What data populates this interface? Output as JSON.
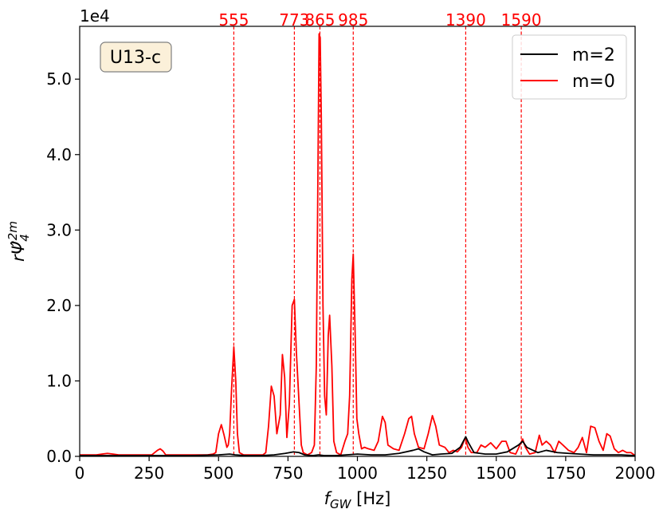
{
  "chart_data": {
    "type": "line",
    "model_label": "U13-c",
    "xlabel": "f_GW [Hz]",
    "ylabel": "rΨ̂_4^{2m}",
    "y_multiplier": "1e4",
    "xlim": [
      0,
      2000
    ],
    "ylim": [
      0,
      5.7
    ],
    "xticks": [
      0,
      250,
      500,
      750,
      1000,
      1250,
      1500,
      1750,
      2000
    ],
    "yticks": [
      0.0,
      1.0,
      2.0,
      3.0,
      4.0,
      5.0
    ],
    "ytick_labels": [
      "0.0",
      "1.0",
      "2.0",
      "3.0",
      "4.0",
      "5.0"
    ],
    "legend_position": "top-right",
    "grid": false,
    "peaks": [
      {
        "label": "555",
        "x": 555
      },
      {
        "label": "773",
        "x": 773
      },
      {
        "label": "865",
        "x": 865
      },
      {
        "label": "985",
        "x": 985
      },
      {
        "label": "1390",
        "x": 1390
      },
      {
        "label": "1590",
        "x": 1590
      }
    ],
    "series": [
      {
        "name": "m=2",
        "color": "#000000",
        "points": [
          [
            0,
            0.01
          ],
          [
            100,
            0.01
          ],
          [
            200,
            0.01
          ],
          [
            300,
            0.01
          ],
          [
            400,
            0.01
          ],
          [
            500,
            0.02
          ],
          [
            540,
            0.03
          ],
          [
            560,
            0.02
          ],
          [
            600,
            0.01
          ],
          [
            650,
            0.01
          ],
          [
            700,
            0.02
          ],
          [
            740,
            0.04
          ],
          [
            770,
            0.06
          ],
          [
            790,
            0.05
          ],
          [
            810,
            0.02
          ],
          [
            840,
            0.01
          ],
          [
            860,
            0.02
          ],
          [
            880,
            0.01
          ],
          [
            920,
            0.01
          ],
          [
            960,
            0.02
          ],
          [
            1000,
            0.03
          ],
          [
            1050,
            0.02
          ],
          [
            1100,
            0.02
          ],
          [
            1150,
            0.04
          ],
          [
            1200,
            0.08
          ],
          [
            1220,
            0.1
          ],
          [
            1240,
            0.06
          ],
          [
            1270,
            0.02
          ],
          [
            1300,
            0.03
          ],
          [
            1340,
            0.04
          ],
          [
            1370,
            0.12
          ],
          [
            1390,
            0.26
          ],
          [
            1400,
            0.18
          ],
          [
            1420,
            0.05
          ],
          [
            1460,
            0.03
          ],
          [
            1500,
            0.03
          ],
          [
            1540,
            0.06
          ],
          [
            1580,
            0.15
          ],
          [
            1595,
            0.2
          ],
          [
            1610,
            0.12
          ],
          [
            1650,
            0.05
          ],
          [
            1680,
            0.08
          ],
          [
            1720,
            0.05
          ],
          [
            1760,
            0.04
          ],
          [
            1800,
            0.03
          ],
          [
            1850,
            0.02
          ],
          [
            1900,
            0.02
          ],
          [
            1950,
            0.02
          ],
          [
            2000,
            0.01
          ]
        ]
      },
      {
        "name": "m=0",
        "color": "#ff0000",
        "points": [
          [
            0,
            0.02
          ],
          [
            40,
            0.02
          ],
          [
            60,
            0.02
          ],
          [
            80,
            0.03
          ],
          [
            100,
            0.04
          ],
          [
            120,
            0.03
          ],
          [
            140,
            0.02
          ],
          [
            180,
            0.02
          ],
          [
            220,
            0.02
          ],
          [
            260,
            0.02
          ],
          [
            280,
            0.08
          ],
          [
            290,
            0.1
          ],
          [
            300,
            0.07
          ],
          [
            310,
            0.02
          ],
          [
            340,
            0.02
          ],
          [
            380,
            0.02
          ],
          [
            420,
            0.02
          ],
          [
            460,
            0.02
          ],
          [
            480,
            0.03
          ],
          [
            490,
            0.05
          ],
          [
            500,
            0.3
          ],
          [
            510,
            0.42
          ],
          [
            520,
            0.28
          ],
          [
            530,
            0.12
          ],
          [
            535,
            0.15
          ],
          [
            540,
            0.3
          ],
          [
            547,
            0.9
          ],
          [
            555,
            1.45
          ],
          [
            562,
            1.0
          ],
          [
            568,
            0.3
          ],
          [
            575,
            0.05
          ],
          [
            590,
            0.02
          ],
          [
            620,
            0.02
          ],
          [
            660,
            0.02
          ],
          [
            670,
            0.05
          ],
          [
            680,
            0.4
          ],
          [
            690,
            0.93
          ],
          [
            700,
            0.8
          ],
          [
            710,
            0.3
          ],
          [
            722,
            0.55
          ],
          [
            730,
            1.35
          ],
          [
            738,
            1.05
          ],
          [
            746,
            0.25
          ],
          [
            755,
            0.7
          ],
          [
            765,
            2.0
          ],
          [
            773,
            2.08
          ],
          [
            780,
            1.4
          ],
          [
            790,
            0.7
          ],
          [
            798,
            0.15
          ],
          [
            805,
            0.05
          ],
          [
            820,
            0.02
          ],
          [
            835,
            0.05
          ],
          [
            845,
            0.15
          ],
          [
            852,
            1.2
          ],
          [
            858,
            3.8
          ],
          [
            862,
            5.6
          ],
          [
            866,
            5.55
          ],
          [
            870,
            4.5
          ],
          [
            876,
            2.0
          ],
          [
            882,
            0.8
          ],
          [
            888,
            0.55
          ],
          [
            895,
            1.6
          ],
          [
            900,
            1.87
          ],
          [
            908,
            1.2
          ],
          [
            915,
            0.2
          ],
          [
            925,
            0.05
          ],
          [
            940,
            0.02
          ],
          [
            955,
            0.2
          ],
          [
            965,
            0.3
          ],
          [
            972,
            0.8
          ],
          [
            980,
            2.35
          ],
          [
            985,
            2.68
          ],
          [
            992,
            1.6
          ],
          [
            998,
            0.5
          ],
          [
            1005,
            0.3
          ],
          [
            1015,
            0.1
          ],
          [
            1025,
            0.12
          ],
          [
            1040,
            0.1
          ],
          [
            1060,
            0.08
          ],
          [
            1075,
            0.2
          ],
          [
            1090,
            0.53
          ],
          [
            1100,
            0.45
          ],
          [
            1110,
            0.15
          ],
          [
            1130,
            0.1
          ],
          [
            1150,
            0.08
          ],
          [
            1170,
            0.3
          ],
          [
            1185,
            0.5
          ],
          [
            1195,
            0.53
          ],
          [
            1205,
            0.3
          ],
          [
            1220,
            0.12
          ],
          [
            1240,
            0.1
          ],
          [
            1255,
            0.3
          ],
          [
            1270,
            0.54
          ],
          [
            1282,
            0.4
          ],
          [
            1295,
            0.15
          ],
          [
            1315,
            0.12
          ],
          [
            1330,
            0.05
          ],
          [
            1345,
            0.08
          ],
          [
            1360,
            0.06
          ],
          [
            1375,
            0.12
          ],
          [
            1385,
            0.22
          ],
          [
            1390,
            0.22
          ],
          [
            1398,
            0.12
          ],
          [
            1410,
            0.05
          ],
          [
            1430,
            0.05
          ],
          [
            1445,
            0.15
          ],
          [
            1460,
            0.12
          ],
          [
            1480,
            0.18
          ],
          [
            1500,
            0.1
          ],
          [
            1520,
            0.2
          ],
          [
            1535,
            0.2
          ],
          [
            1550,
            0.05
          ],
          [
            1570,
            0.03
          ],
          [
            1585,
            0.15
          ],
          [
            1595,
            0.23
          ],
          [
            1605,
            0.12
          ],
          [
            1620,
            0.03
          ],
          [
            1640,
            0.05
          ],
          [
            1655,
            0.28
          ],
          [
            1665,
            0.15
          ],
          [
            1680,
            0.2
          ],
          [
            1695,
            0.15
          ],
          [
            1710,
            0.05
          ],
          [
            1725,
            0.2
          ],
          [
            1740,
            0.15
          ],
          [
            1760,
            0.08
          ],
          [
            1780,
            0.05
          ],
          [
            1795,
            0.12
          ],
          [
            1810,
            0.25
          ],
          [
            1825,
            0.05
          ],
          [
            1840,
            0.4
          ],
          [
            1855,
            0.38
          ],
          [
            1870,
            0.2
          ],
          [
            1885,
            0.08
          ],
          [
            1898,
            0.3
          ],
          [
            1910,
            0.27
          ],
          [
            1925,
            0.1
          ],
          [
            1940,
            0.05
          ],
          [
            1955,
            0.08
          ],
          [
            1970,
            0.05
          ],
          [
            1985,
            0.05
          ],
          [
            2000,
            0.01
          ]
        ]
      }
    ]
  }
}
